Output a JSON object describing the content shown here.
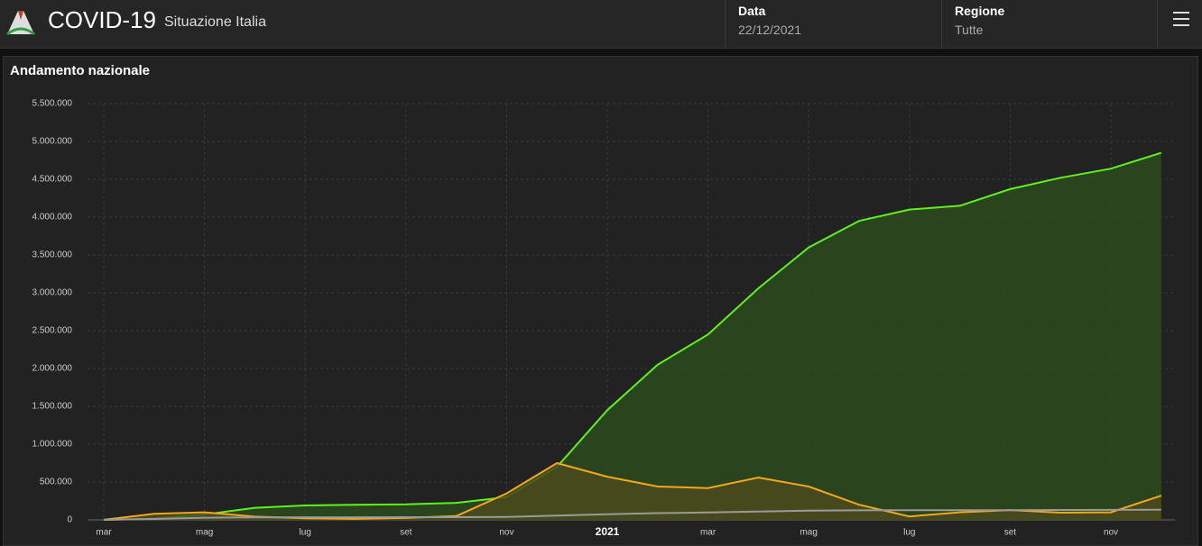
{
  "header": {
    "title": "COVID-19",
    "subtitle": "Situazione Italia",
    "date_label": "Data",
    "date_value": "22/12/2021",
    "region_label": "Regione",
    "region_value": "Tutte"
  },
  "panel": {
    "title": "Andamento nazionale"
  },
  "chart_data": {
    "type": "area",
    "categories": [
      "mar",
      null,
      "mag",
      null,
      "lug",
      null,
      "set",
      null,
      "nov",
      null,
      "2021",
      null,
      "mar",
      null,
      "mag",
      null,
      "lug",
      null,
      "set",
      null,
      "nov",
      null
    ],
    "series": [
      {
        "color": "#5df21c",
        "fill": "#2c4a1c",
        "values": [
          0,
          20000,
          70000,
          160000,
          190000,
          200000,
          205000,
          225000,
          300000,
          700000,
          1450000,
          2050000,
          2450000,
          3060000,
          3600000,
          3950000,
          4100000,
          4150000,
          4370000,
          4520000,
          4640000,
          4850000
        ]
      },
      {
        "color": "#f2a71c",
        "fill": "#4a4a1c",
        "values": [
          1000,
          80000,
          100000,
          43000,
          20000,
          13000,
          25000,
          50000,
          350000,
          750000,
          570000,
          440000,
          420000,
          560000,
          440000,
          200000,
          45000,
          100000,
          130000,
          95000,
          100000,
          320000
        ]
      },
      {
        "color": "#9a9a9a",
        "fill": "none",
        "values": [
          0,
          12000,
          28000,
          33000,
          35000,
          35000,
          35500,
          36000,
          39000,
          56000,
          75000,
          89000,
          98000,
          110000,
          121000,
          126000,
          128000,
          128000,
          129000,
          131000,
          132000,
          135000
        ]
      }
    ],
    "ylim": [
      0,
      5500000
    ],
    "yticks": [
      0,
      {
        "value": 500000,
        "label": "500.000"
      },
      {
        "value": 1000000,
        "label": "1.000.000"
      },
      {
        "value": 1500000,
        "label": "1.500.000"
      },
      {
        "value": 2000000,
        "label": "2.000.000"
      },
      {
        "value": 2500000,
        "label": "2.500.000"
      },
      {
        "value": 3000000,
        "label": "3.000.000"
      },
      {
        "value": 3500000,
        "label": "3.500.000"
      },
      {
        "value": 4000000,
        "label": "4.000.000"
      },
      {
        "value": 4500000,
        "label": "4.500.000"
      },
      {
        "value": 5000000,
        "label": "5.000.000"
      },
      {
        "value": 5500000,
        "label": "5.500.000"
      }
    ],
    "grid": true
  }
}
